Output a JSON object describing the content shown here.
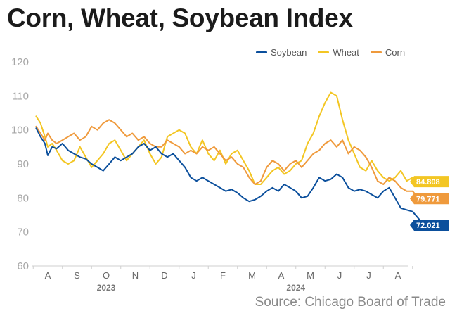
{
  "title": "Corn, Wheat, Soybean Index",
  "source": "Source: Chicago Board of Trade",
  "chart_data": {
    "type": "line",
    "title": "Corn, Wheat, Soybean Index",
    "xlabel": "",
    "ylabel": "",
    "ylim": [
      60,
      120
    ],
    "yticks": [
      60,
      70,
      80,
      90,
      100,
      110,
      120
    ],
    "months": [
      "A",
      "S",
      "O",
      "N",
      "D",
      "J",
      "F",
      "M",
      "A",
      "M",
      "J",
      "J",
      "A"
    ],
    "years": [
      {
        "label": "2023",
        "month_index": 2
      },
      {
        "label": "2024",
        "month_index": 8.5
      }
    ],
    "grid": false,
    "legend_position": "top-right",
    "series": [
      {
        "name": "Soybean",
        "color": "#0b4f9c",
        "end_label": "72.021",
        "points": [
          [
            -0.4,
            100.5
          ],
          [
            -0.25,
            98
          ],
          [
            -0.1,
            96
          ],
          [
            0,
            92.5
          ],
          [
            0.15,
            95
          ],
          [
            0.3,
            94.5
          ],
          [
            0.5,
            96
          ],
          [
            0.7,
            94
          ],
          [
            0.9,
            93
          ],
          [
            1.1,
            92
          ],
          [
            1.3,
            91.5
          ],
          [
            1.5,
            90
          ],
          [
            1.7,
            89
          ],
          [
            1.9,
            88
          ],
          [
            2.1,
            90
          ],
          [
            2.3,
            92
          ],
          [
            2.5,
            91
          ],
          [
            2.7,
            92
          ],
          [
            2.9,
            93
          ],
          [
            3.1,
            95
          ],
          [
            3.3,
            96
          ],
          [
            3.5,
            94
          ],
          [
            3.7,
            95
          ],
          [
            3.9,
            93
          ],
          [
            4.1,
            92
          ],
          [
            4.3,
            93
          ],
          [
            4.5,
            91
          ],
          [
            4.7,
            89
          ],
          [
            4.9,
            86
          ],
          [
            5.1,
            85
          ],
          [
            5.3,
            86
          ],
          [
            5.5,
            85
          ],
          [
            5.7,
            84
          ],
          [
            5.9,
            83
          ],
          [
            6.1,
            82
          ],
          [
            6.3,
            82.5
          ],
          [
            6.5,
            81.5
          ],
          [
            6.7,
            80
          ],
          [
            6.9,
            79
          ],
          [
            7.1,
            79.5
          ],
          [
            7.3,
            80.5
          ],
          [
            7.5,
            82
          ],
          [
            7.7,
            83
          ],
          [
            7.9,
            82
          ],
          [
            8.1,
            84
          ],
          [
            8.3,
            83
          ],
          [
            8.5,
            82
          ],
          [
            8.7,
            80
          ],
          [
            8.9,
            80.5
          ],
          [
            9.1,
            83
          ],
          [
            9.3,
            86
          ],
          [
            9.5,
            85
          ],
          [
            9.7,
            85.5
          ],
          [
            9.9,
            87
          ],
          [
            10.1,
            86
          ],
          [
            10.3,
            83
          ],
          [
            10.5,
            82
          ],
          [
            10.7,
            82.5
          ],
          [
            10.9,
            82
          ],
          [
            11.1,
            81
          ],
          [
            11.3,
            80
          ],
          [
            11.5,
            82
          ],
          [
            11.7,
            83
          ],
          [
            11.9,
            80
          ],
          [
            12.1,
            77
          ],
          [
            12.3,
            76.5
          ],
          [
            12.5,
            76
          ],
          [
            12.7,
            74
          ],
          [
            12.85,
            72.5
          ],
          [
            13.0,
            72
          ]
        ]
      },
      {
        "name": "Wheat",
        "color": "#f3c623",
        "end_label": "84.808",
        "points": [
          [
            -0.4,
            104
          ],
          [
            -0.25,
            102
          ],
          [
            -0.1,
            98
          ],
          [
            0,
            95
          ],
          [
            0.15,
            96
          ],
          [
            0.3,
            94
          ],
          [
            0.5,
            91
          ],
          [
            0.7,
            90
          ],
          [
            0.9,
            91
          ],
          [
            1.1,
            95
          ],
          [
            1.3,
            92
          ],
          [
            1.5,
            89
          ],
          [
            1.7,
            91
          ],
          [
            1.9,
            93
          ],
          [
            2.1,
            96
          ],
          [
            2.3,
            97
          ],
          [
            2.5,
            94
          ],
          [
            2.7,
            91
          ],
          [
            2.9,
            93
          ],
          [
            3.1,
            95
          ],
          [
            3.3,
            97
          ],
          [
            3.5,
            93
          ],
          [
            3.7,
            90
          ],
          [
            3.9,
            92
          ],
          [
            4.1,
            98
          ],
          [
            4.3,
            99
          ],
          [
            4.5,
            100
          ],
          [
            4.7,
            99
          ],
          [
            4.9,
            95
          ],
          [
            5.1,
            93
          ],
          [
            5.3,
            97
          ],
          [
            5.5,
            93
          ],
          [
            5.7,
            91
          ],
          [
            5.9,
            94
          ],
          [
            6.1,
            90
          ],
          [
            6.3,
            93
          ],
          [
            6.5,
            94
          ],
          [
            6.7,
            91
          ],
          [
            6.9,
            88
          ],
          [
            7.1,
            84
          ],
          [
            7.3,
            84
          ],
          [
            7.5,
            86
          ],
          [
            7.7,
            88
          ],
          [
            7.9,
            89
          ],
          [
            8.1,
            87
          ],
          [
            8.3,
            88
          ],
          [
            8.5,
            90
          ],
          [
            8.7,
            91
          ],
          [
            8.9,
            96
          ],
          [
            9.1,
            99
          ],
          [
            9.3,
            104
          ],
          [
            9.5,
            108
          ],
          [
            9.7,
            111
          ],
          [
            9.9,
            110
          ],
          [
            10.1,
            103
          ],
          [
            10.3,
            97
          ],
          [
            10.5,
            93
          ],
          [
            10.7,
            89
          ],
          [
            10.9,
            88
          ],
          [
            11.1,
            91
          ],
          [
            11.3,
            88
          ],
          [
            11.5,
            86
          ],
          [
            11.7,
            85
          ],
          [
            11.9,
            86
          ],
          [
            12.1,
            88
          ],
          [
            12.3,
            85
          ],
          [
            12.5,
            86
          ],
          [
            12.7,
            84
          ],
          [
            12.85,
            85
          ],
          [
            13.0,
            84.8
          ]
        ]
      },
      {
        "name": "Corn",
        "color": "#ef9a3c",
        "end_label": "79.771",
        "points": [
          [
            -0.4,
            101
          ],
          [
            -0.25,
            99
          ],
          [
            -0.1,
            97
          ],
          [
            0,
            99
          ],
          [
            0.15,
            97
          ],
          [
            0.3,
            96
          ],
          [
            0.5,
            97
          ],
          [
            0.7,
            98
          ],
          [
            0.9,
            99
          ],
          [
            1.1,
            97
          ],
          [
            1.3,
            98
          ],
          [
            1.5,
            101
          ],
          [
            1.7,
            100
          ],
          [
            1.9,
            102
          ],
          [
            2.1,
            103
          ],
          [
            2.3,
            102
          ],
          [
            2.5,
            100
          ],
          [
            2.7,
            98
          ],
          [
            2.9,
            99
          ],
          [
            3.1,
            97
          ],
          [
            3.3,
            98
          ],
          [
            3.5,
            96
          ],
          [
            3.7,
            95
          ],
          [
            3.9,
            95
          ],
          [
            4.1,
            97
          ],
          [
            4.3,
            96
          ],
          [
            4.5,
            95
          ],
          [
            4.7,
            93
          ],
          [
            4.9,
            94
          ],
          [
            5.1,
            93
          ],
          [
            5.3,
            95
          ],
          [
            5.5,
            94
          ],
          [
            5.7,
            95
          ],
          [
            5.9,
            93
          ],
          [
            6.1,
            91
          ],
          [
            6.3,
            92
          ],
          [
            6.5,
            90
          ],
          [
            6.7,
            89
          ],
          [
            6.9,
            86
          ],
          [
            7.1,
            84
          ],
          [
            7.3,
            85
          ],
          [
            7.5,
            89
          ],
          [
            7.7,
            91
          ],
          [
            7.9,
            90
          ],
          [
            8.1,
            88
          ],
          [
            8.3,
            90
          ],
          [
            8.5,
            91
          ],
          [
            8.7,
            89
          ],
          [
            8.9,
            91
          ],
          [
            9.1,
            93
          ],
          [
            9.3,
            94
          ],
          [
            9.5,
            96
          ],
          [
            9.7,
            97
          ],
          [
            9.9,
            95
          ],
          [
            10.1,
            97
          ],
          [
            10.3,
            93
          ],
          [
            10.5,
            95
          ],
          [
            10.7,
            94
          ],
          [
            10.9,
            92
          ],
          [
            11.1,
            89
          ],
          [
            11.3,
            85
          ],
          [
            11.5,
            84
          ],
          [
            11.7,
            86
          ],
          [
            11.9,
            85
          ],
          [
            12.1,
            83
          ],
          [
            12.3,
            82
          ],
          [
            12.5,
            82
          ],
          [
            12.7,
            80
          ],
          [
            12.85,
            80
          ],
          [
            13.0,
            79.8
          ]
        ]
      }
    ]
  }
}
